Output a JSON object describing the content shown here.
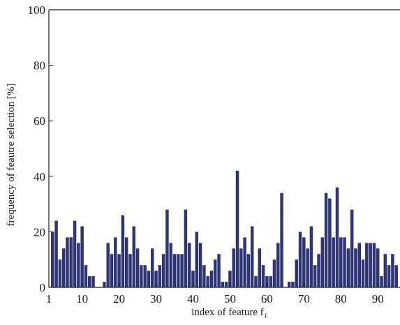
{
  "chart_data": {
    "type": "bar",
    "title": "",
    "xlabel": "index of feature f",
    "xlabel_subscript": "i",
    "ylabel": "frequency of feautre selection [%]",
    "xlim": [
      1,
      96
    ],
    "ylim": [
      0,
      100
    ],
    "xticks": [
      1,
      10,
      20,
      30,
      40,
      50,
      60,
      70,
      80,
      90
    ],
    "yticks": [
      0,
      20,
      40,
      60,
      80,
      100
    ],
    "bar_color": "#2e3576",
    "grid": false,
    "x": [
      2,
      3,
      4,
      5,
      6,
      7,
      8,
      9,
      10,
      11,
      12,
      13,
      14,
      15,
      16,
      17,
      18,
      19,
      20,
      21,
      22,
      23,
      24,
      25,
      26,
      27,
      28,
      29,
      30,
      31,
      32,
      33,
      34,
      35,
      36,
      37,
      38,
      39,
      40,
      41,
      42,
      43,
      44,
      45,
      46,
      47,
      48,
      49,
      50,
      51,
      52,
      53,
      54,
      55,
      56,
      57,
      58,
      59,
      60,
      61,
      62,
      63,
      64,
      65,
      66,
      67,
      68,
      69,
      70,
      71,
      72,
      73,
      74,
      75,
      76,
      77,
      78,
      79,
      80,
      81,
      82,
      83,
      84,
      85,
      86,
      87,
      88,
      89,
      90,
      91,
      92,
      93,
      94,
      95
    ],
    "values": [
      20,
      24,
      10,
      14,
      18,
      18,
      24,
      16,
      22,
      8,
      4,
      4,
      0,
      0,
      2,
      16,
      12,
      18,
      12,
      26,
      18,
      12,
      22,
      14,
      8,
      8,
      6,
      14,
      6,
      8,
      12,
      28,
      16,
      12,
      12,
      12,
      28,
      16,
      6,
      20,
      16,
      8,
      4,
      6,
      10,
      12,
      2,
      2,
      6,
      14,
      42,
      14,
      18,
      12,
      22,
      4,
      14,
      8,
      4,
      4,
      10,
      16,
      34,
      0,
      2,
      2,
      10,
      20,
      18,
      14,
      22,
      8,
      12,
      18,
      34,
      32,
      18,
      36,
      18,
      18,
      14,
      28,
      14,
      16,
      10,
      16,
      16,
      16,
      14,
      4,
      12,
      8,
      12,
      8
    ]
  }
}
